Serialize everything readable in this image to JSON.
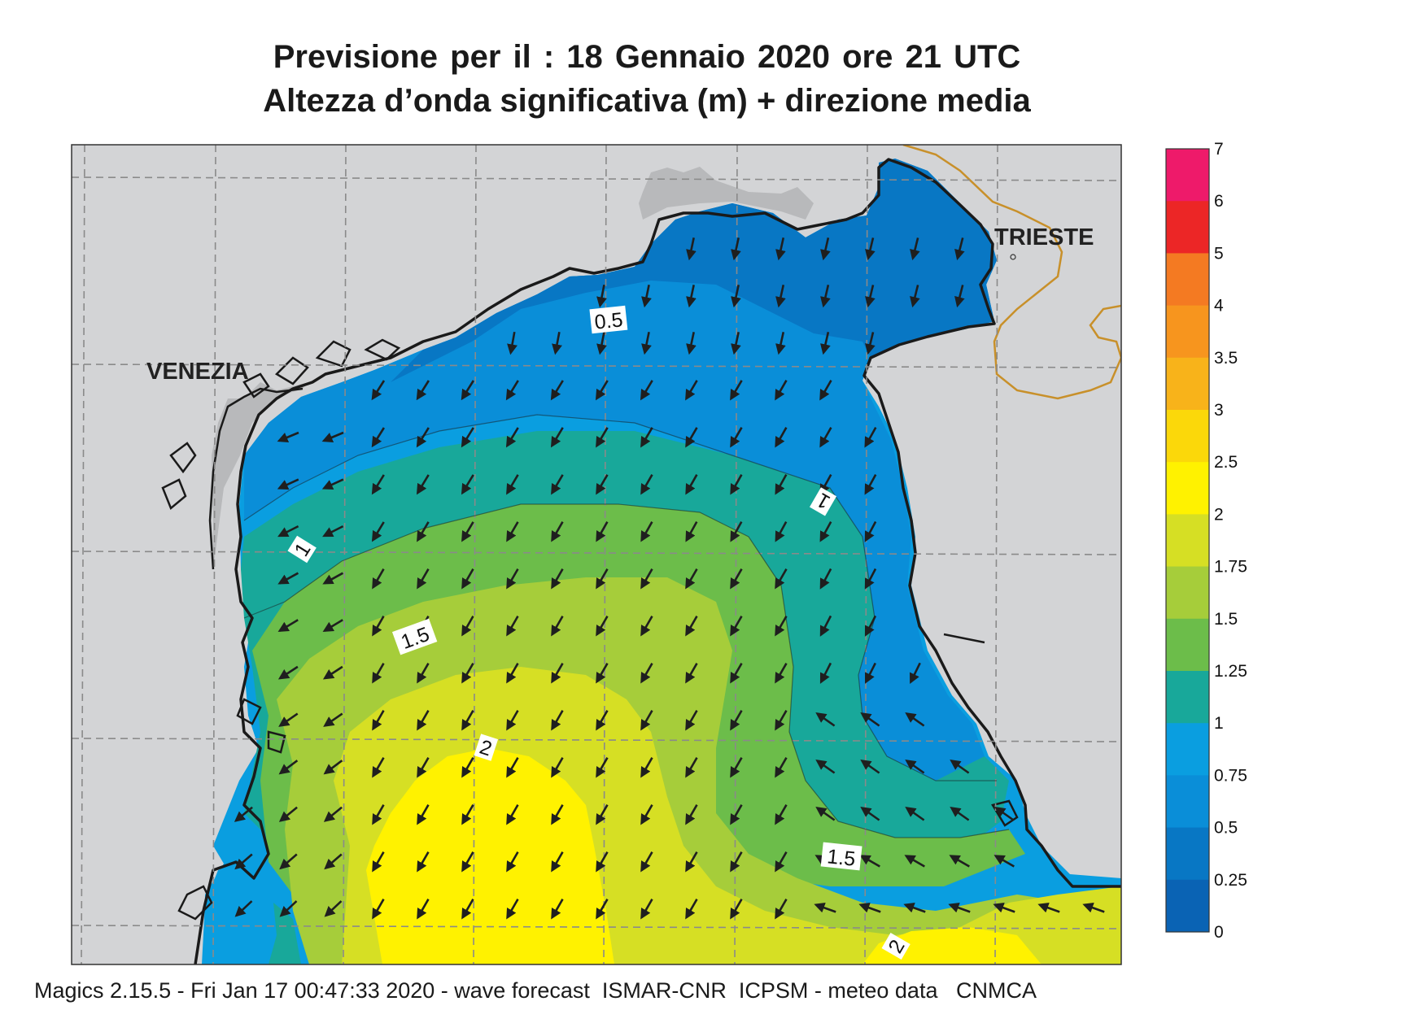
{
  "header": {
    "title_line1": "Previsione per il  :  18  Gennaio  2020   ore 21 UTC",
    "title_line2": "Altezza d’onda significativa (m) + direzione media"
  },
  "places": {
    "venezia": "VENEZIA",
    "trieste": "TRIESTE"
  },
  "contour_labels": {
    "c05": "0.5",
    "c1_west": "1",
    "c1_east": "1",
    "c15_west": "1.5",
    "c15_east": "1.5",
    "c2_centre": "2",
    "c2_south": "2"
  },
  "legend": {
    "unit": "m",
    "stops": [
      {
        "label": "7",
        "color": "#ee1a6a"
      },
      {
        "label": "6",
        "color": "#ee1a6a"
      },
      {
        "label": "5",
        "color": "#ec2626"
      },
      {
        "label": "4",
        "color": "#f47a22"
      },
      {
        "label": "3.5",
        "color": "#f7951e"
      },
      {
        "label": "3",
        "color": "#f8b31a"
      },
      {
        "label": "2.5",
        "color": "#fbd80a"
      },
      {
        "label": "2",
        "color": "#fff200"
      },
      {
        "label": "1.75",
        "color": "#d6df24"
      },
      {
        "label": "1.5",
        "color": "#a6cd3a"
      },
      {
        "label": "1.25",
        "color": "#6cbd4a"
      },
      {
        "label": "1",
        "color": "#18a89a"
      },
      {
        "label": "0.75",
        "color": "#0a9ee0"
      },
      {
        "label": "0.5",
        "color": "#0a8ed8"
      },
      {
        "label": "0.25",
        "color": "#0877c4"
      },
      {
        "label": "0",
        "color": "#0a63b4"
      }
    ]
  },
  "colors": {
    "land": "#d3d4d6",
    "lagoon": "#b8b9bb",
    "coastline": "#1a1a1a",
    "border": "#c8902a",
    "grid": "#8a8a8a",
    "arrow": "#1f1f1f"
  },
  "footer": {
    "text": "Magics 2.15.5 - Fri Jan 17 00:47:33 2020 - wave forecast  ISMAR-CNR  ICPSM - meteo data   CNMCA"
  }
}
